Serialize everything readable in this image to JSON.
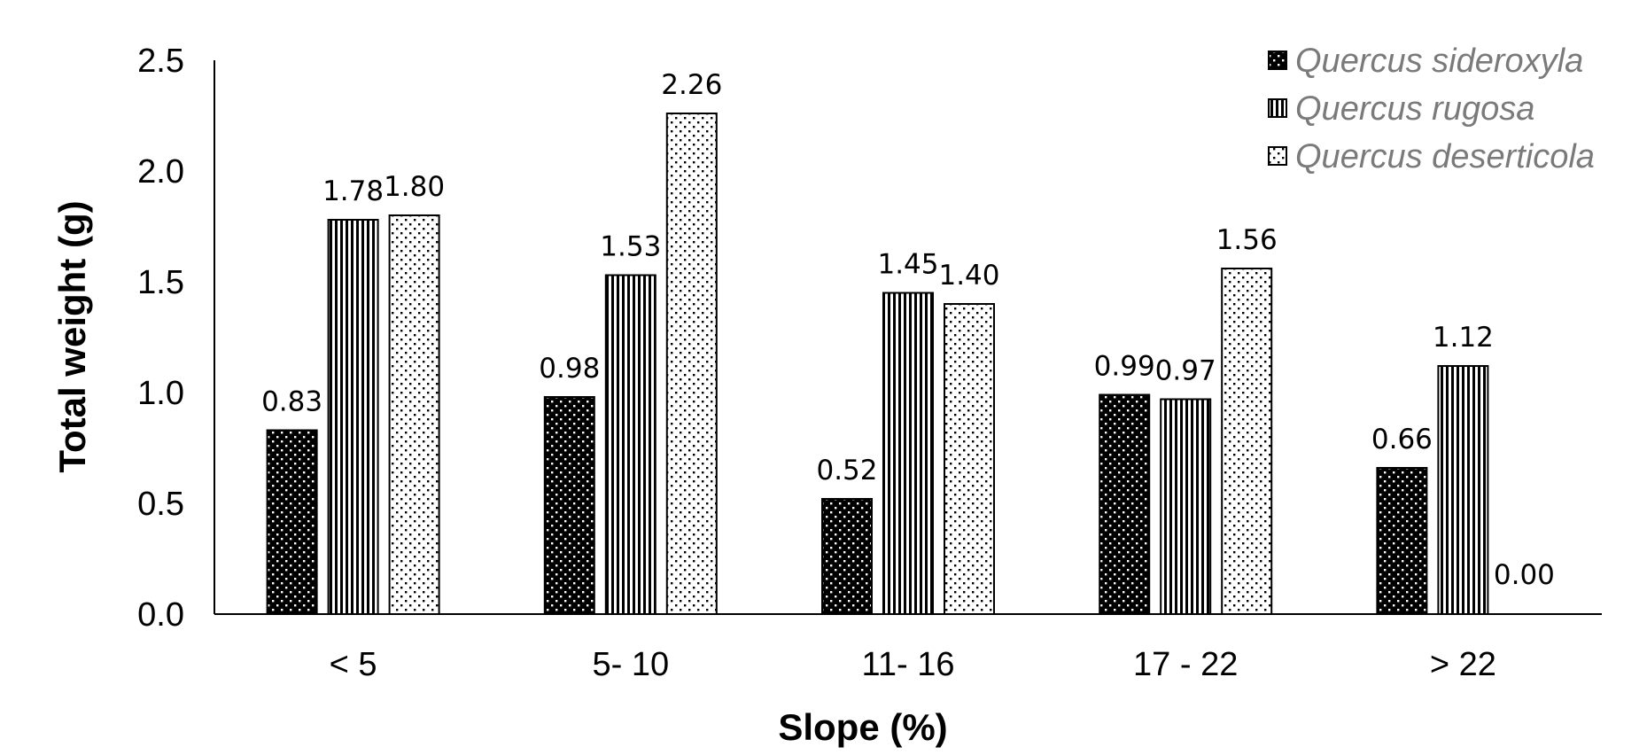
{
  "chart_data": {
    "type": "bar",
    "categories": [
      "< 5",
      "5- 10",
      "11- 16",
      "17 - 22",
      "> 22"
    ],
    "series": [
      {
        "name": "Quercus sideroxyla",
        "values": [
          0.83,
          0.98,
          0.52,
          0.99,
          0.66
        ],
        "labels": [
          "0.83",
          "0.98",
          "0.52",
          "0.99",
          "0.66"
        ],
        "pattern": "dark-dots"
      },
      {
        "name": "Quercus rugosa",
        "values": [
          1.78,
          1.53,
          1.45,
          0.97,
          1.12
        ],
        "labels": [
          "1.78",
          "1.53",
          "1.45",
          "0.97",
          "1.12"
        ],
        "pattern": "vertical-lines"
      },
      {
        "name": "Quercus deserticola",
        "values": [
          1.8,
          2.26,
          1.4,
          1.56,
          0.0
        ],
        "labels": [
          "1.80",
          "2.26",
          "1.40",
          "1.56",
          "0.00"
        ],
        "pattern": "light-dots"
      }
    ],
    "xlabel": "Slope (%)",
    "ylabel": "Total weight (g)",
    "ylim": [
      0,
      2.5
    ],
    "yticks": [
      "0.0",
      "0.5",
      "1.0",
      "1.5",
      "2.0",
      "2.5"
    ],
    "grid": false,
    "legend": "top-right"
  }
}
